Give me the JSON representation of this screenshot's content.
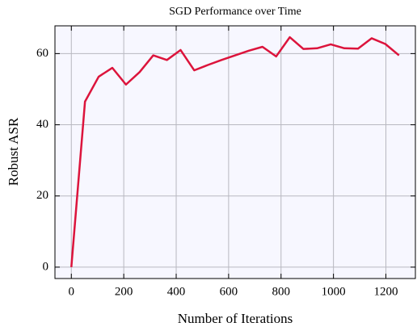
{
  "chart_data": {
    "type": "line",
    "title": "SGD Performance over Time",
    "x_label": "Number of Iterations",
    "y_label": "Robust ASR",
    "x": [
      0,
      52.08,
      104.17,
      156.25,
      208.33,
      260.42,
      312.5,
      364.58,
      416.67,
      468.75,
      520.83,
      572.92,
      625,
      677.08,
      729.17,
      781.25,
      833.33,
      885.42,
      937.5,
      989.58,
      1041.67,
      1093.75,
      1145.83,
      1197.92,
      1250
    ],
    "series": [
      {
        "name": "Robust ASR",
        "color": "#dc143c",
        "values": [
          0,
          46.5,
          53.5,
          56,
          51.3,
          54.8,
          59.5,
          58.2,
          61,
          55.3,
          56.8,
          58.2,
          59.5,
          60.8,
          61.9,
          59.2,
          64.6,
          61.3,
          61.5,
          62.6,
          61.5,
          61.4,
          64.3,
          62.7,
          59.5
        ]
      }
    ],
    "xlim": [
      -62.5,
      1312.5
    ],
    "xticks": [
      0,
      200,
      400,
      600,
      800,
      1000,
      1200
    ],
    "ylim": [
      -3.2,
      67.8
    ],
    "yticks": [
      0,
      20,
      40,
      60
    ],
    "grid": true
  }
}
